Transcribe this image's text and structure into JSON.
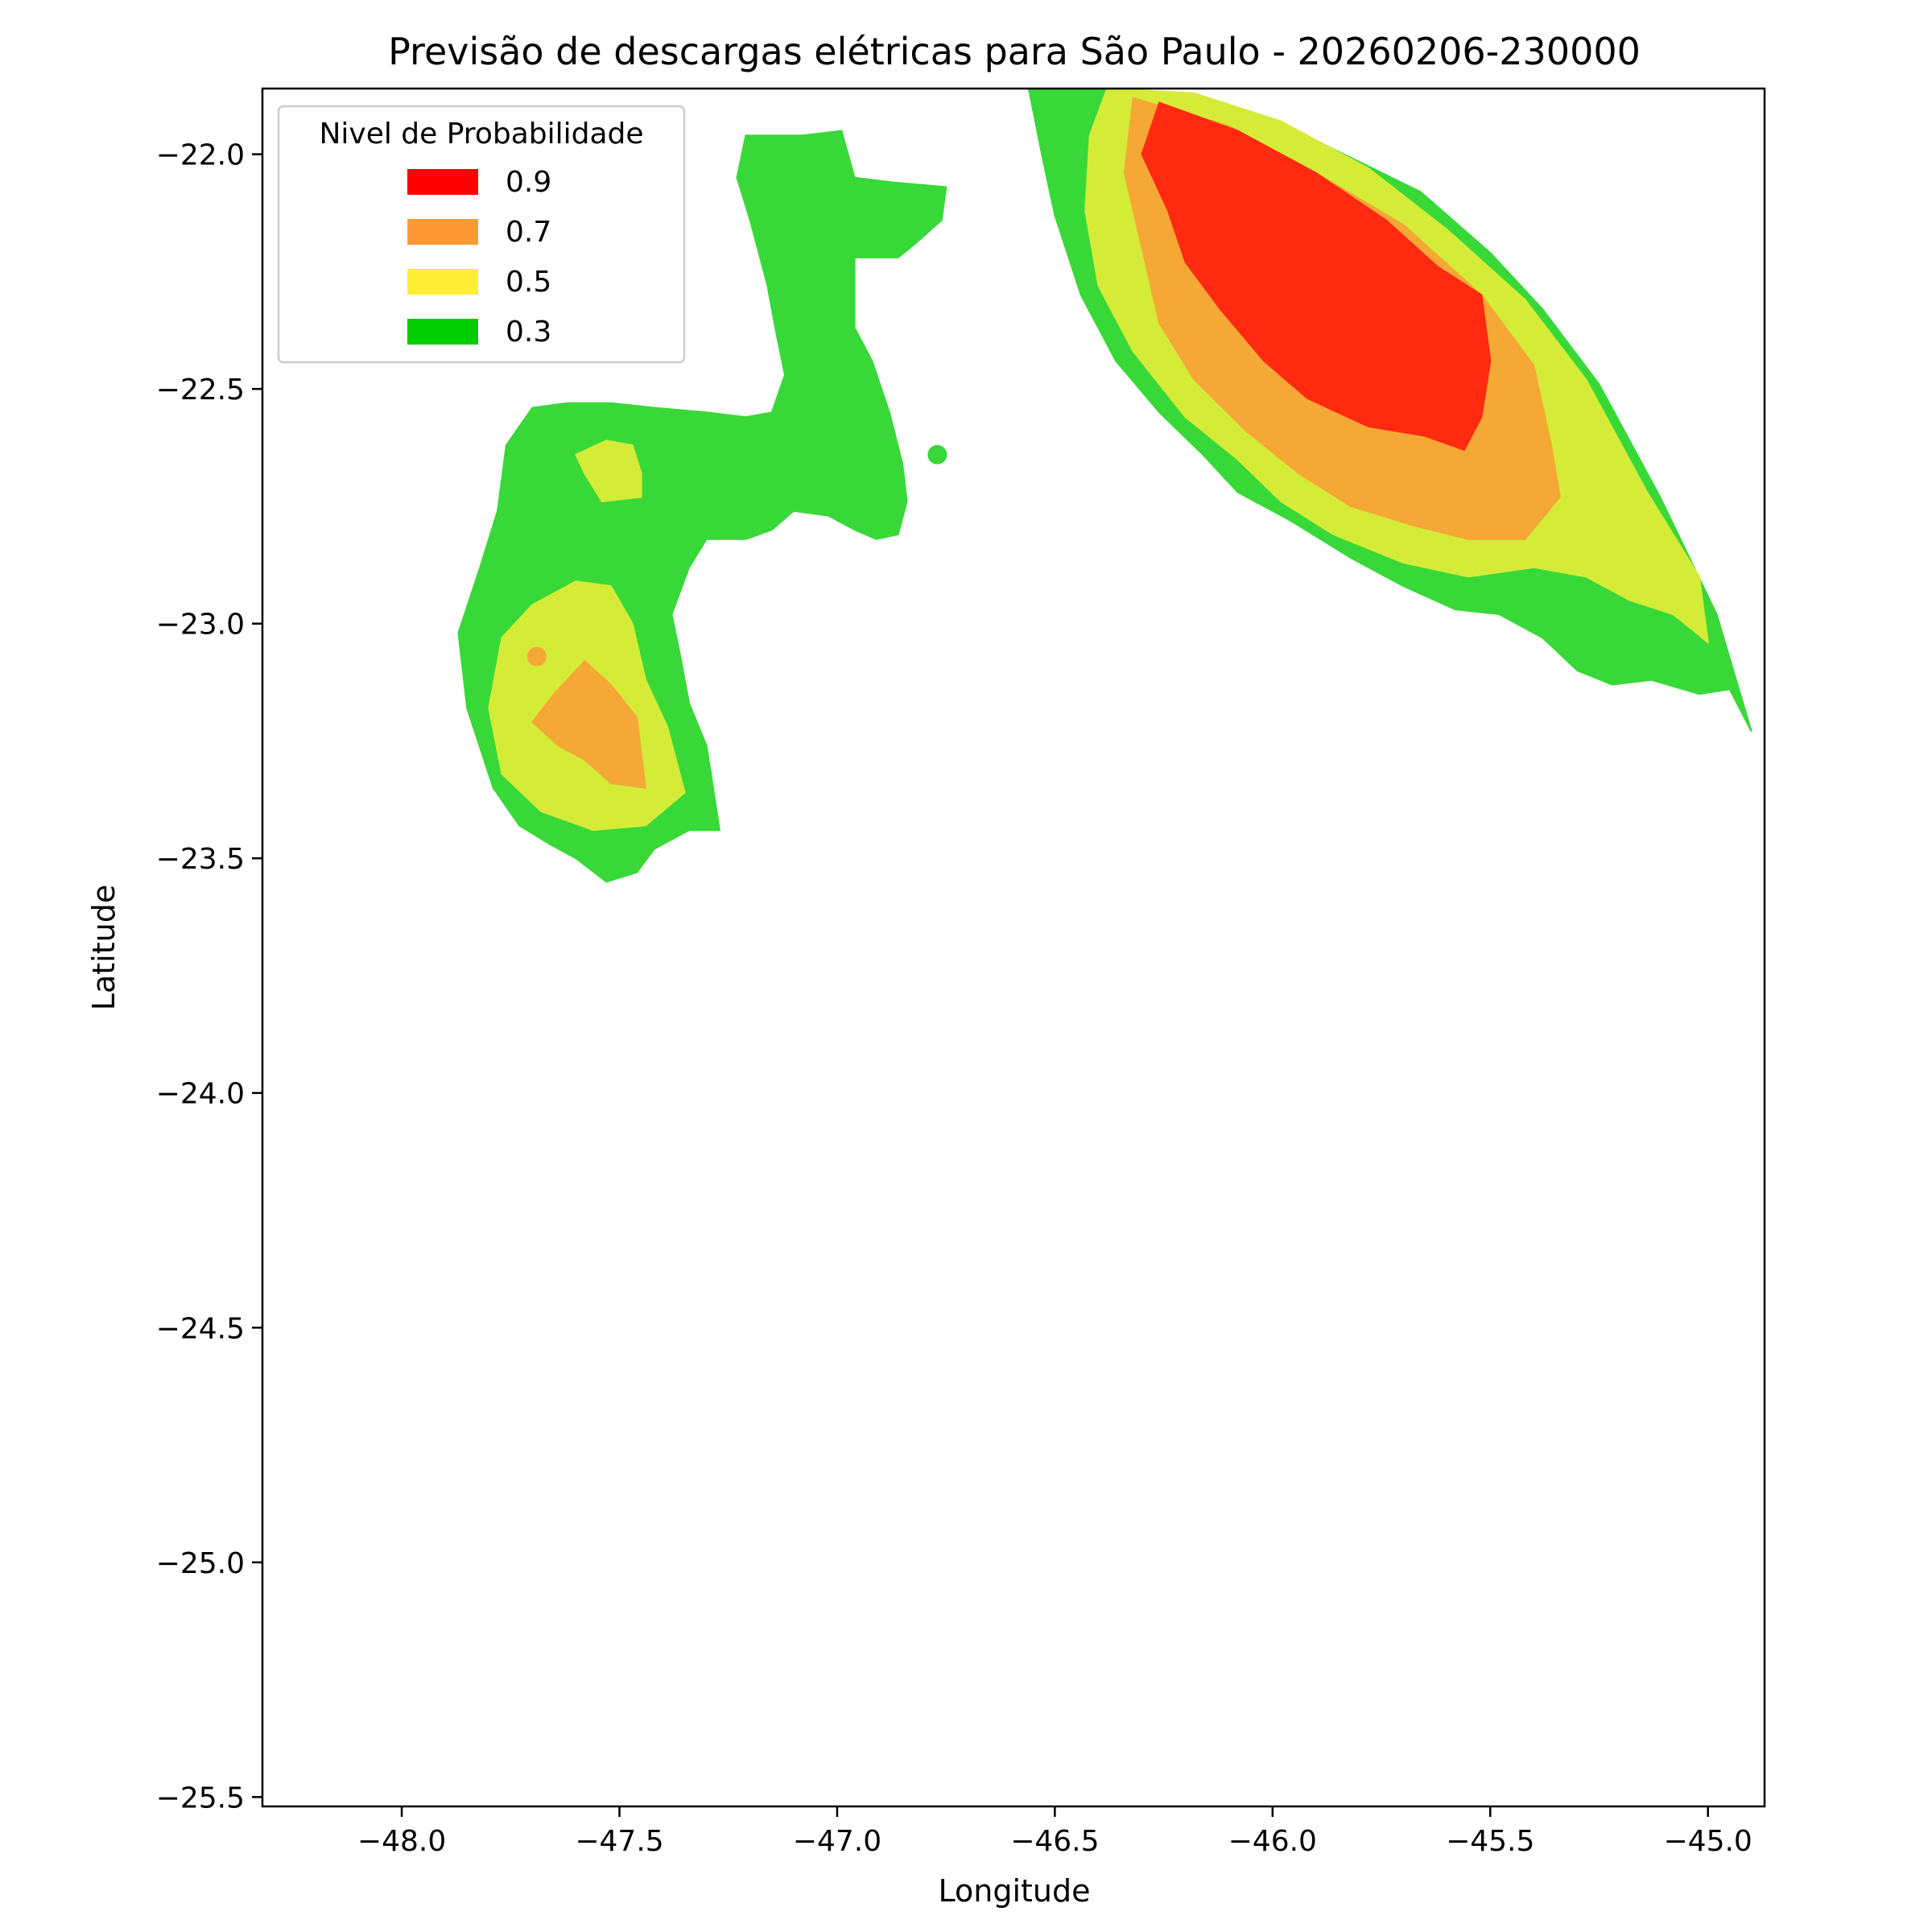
{
  "chart_data": {
    "type": "contour",
    "title": "Previsão de descargas elétricas para São Paulo - 20260206-230000",
    "xlabel": "Longitude",
    "ylabel": "Latitude",
    "xlim": [
      -48.32,
      -44.87
    ],
    "ylim": [
      -25.52,
      -21.86
    ],
    "xticks": [
      -48.0,
      -47.5,
      -47.0,
      -46.5,
      -46.0,
      -45.5,
      -45.0
    ],
    "xtick_labels": [
      "−48.0",
      "−47.5",
      "−47.0",
      "−46.5",
      "−46.0",
      "−45.5",
      "−45.0"
    ],
    "yticks": [
      -22.0,
      -22.5,
      -23.0,
      -23.5,
      -24.0,
      -24.5,
      -25.0,
      -25.5
    ],
    "ytick_labels": [
      "−22.0",
      "−22.5",
      "−23.0",
      "−23.5",
      "−24.0",
      "−24.5",
      "−25.0",
      "−25.5"
    ],
    "grid": false,
    "legend": {
      "title": "Nivel de Probabilidade",
      "placement": "top-left",
      "entries": [
        {
          "label": "0.9",
          "color": "#ff0000"
        },
        {
          "label": "0.7",
          "color": "#ff9933"
        },
        {
          "label": "0.5",
          "color": "#ffee33"
        },
        {
          "label": "0.3",
          "color": "#00cc00"
        }
      ]
    },
    "fill_colors": {
      "0.3": "#38d838",
      "0.5": "#d4ec38",
      "0.7": "#f5a836",
      "0.9": "#ff2a10"
    },
    "regions": [
      {
        "level": "0.3",
        "points": [
          [
            -47.21,
            -21.96
          ],
          [
            -47.08,
            -21.96
          ],
          [
            -46.99,
            -21.95
          ],
          [
            -46.96,
            -22.05
          ],
          [
            -46.87,
            -22.06
          ],
          [
            -46.75,
            -22.07
          ],
          [
            -46.76,
            -22.14
          ],
          [
            -46.82,
            -22.19
          ],
          [
            -46.86,
            -22.22
          ],
          [
            -46.96,
            -22.22
          ],
          [
            -46.96,
            -22.37
          ],
          [
            -46.92,
            -22.44
          ],
          [
            -46.88,
            -22.55
          ],
          [
            -46.85,
            -22.66
          ],
          [
            -46.84,
            -22.74
          ],
          [
            -46.86,
            -22.81
          ],
          [
            -46.91,
            -22.82
          ],
          [
            -46.96,
            -22.8
          ],
          [
            -47.02,
            -22.77
          ],
          [
            -47.1,
            -22.76
          ],
          [
            -47.15,
            -22.8
          ],
          [
            -47.21,
            -22.82
          ],
          [
            -47.3,
            -22.82
          ],
          [
            -47.34,
            -22.88
          ],
          [
            -47.38,
            -22.98
          ],
          [
            -47.36,
            -23.07
          ],
          [
            -47.34,
            -23.17
          ],
          [
            -47.3,
            -23.26
          ],
          [
            -47.27,
            -23.44
          ],
          [
            -47.34,
            -23.44
          ],
          [
            -47.42,
            -23.48
          ],
          [
            -47.46,
            -23.53
          ],
          [
            -47.53,
            -23.55
          ],
          [
            -47.6,
            -23.5
          ],
          [
            -47.66,
            -23.47
          ],
          [
            -47.73,
            -23.43
          ],
          [
            -47.79,
            -23.35
          ],
          [
            -47.85,
            -23.18
          ],
          [
            -47.87,
            -23.02
          ],
          [
            -47.82,
            -22.88
          ],
          [
            -47.78,
            -22.76
          ],
          [
            -47.76,
            -22.62
          ],
          [
            -47.7,
            -22.54
          ],
          [
            -47.62,
            -22.53
          ],
          [
            -47.52,
            -22.53
          ],
          [
            -47.42,
            -22.54
          ],
          [
            -47.3,
            -22.55
          ],
          [
            -47.21,
            -22.56
          ],
          [
            -47.15,
            -22.55
          ],
          [
            -47.12,
            -22.47
          ],
          [
            -47.14,
            -22.38
          ],
          [
            -47.16,
            -22.28
          ],
          [
            -47.2,
            -22.14
          ],
          [
            -47.23,
            -22.05
          ]
        ]
      },
      {
        "level": "0.3",
        "points": [
          [
            -46.56,
            -21.86
          ],
          [
            -46.34,
            -21.86
          ],
          [
            -46.1,
            -21.91
          ],
          [
            -45.88,
            -21.98
          ],
          [
            -45.66,
            -22.08
          ],
          [
            -45.5,
            -22.21
          ],
          [
            -45.38,
            -22.33
          ],
          [
            -45.25,
            -22.49
          ],
          [
            -45.11,
            -22.73
          ],
          [
            -44.98,
            -22.98
          ],
          [
            -44.9,
            -23.23
          ],
          [
            -44.95,
            -23.14
          ],
          [
            -45.02,
            -23.15
          ],
          [
            -45.13,
            -23.12
          ],
          [
            -45.22,
            -23.13
          ],
          [
            -45.3,
            -23.1
          ],
          [
            -45.38,
            -23.03
          ],
          [
            -45.48,
            -22.98
          ],
          [
            -45.58,
            -22.97
          ],
          [
            -45.7,
            -22.92
          ],
          [
            -45.82,
            -22.86
          ],
          [
            -45.96,
            -22.78
          ],
          [
            -46.08,
            -22.72
          ],
          [
            -46.16,
            -22.64
          ],
          [
            -46.26,
            -22.55
          ],
          [
            -46.36,
            -22.44
          ],
          [
            -46.44,
            -22.3
          ],
          [
            -46.5,
            -22.13
          ],
          [
            -46.53,
            -22.0
          ]
        ]
      },
      {
        "level": "0.5",
        "points": [
          [
            -47.53,
            -22.61
          ],
          [
            -47.47,
            -22.62
          ],
          [
            -47.45,
            -22.68
          ],
          [
            -47.45,
            -22.73
          ],
          [
            -47.54,
            -22.74
          ],
          [
            -47.58,
            -22.68
          ],
          [
            -47.6,
            -22.64
          ]
        ]
      },
      {
        "level": "0.5",
        "points": [
          [
            -47.6,
            -22.91
          ],
          [
            -47.52,
            -22.92
          ],
          [
            -47.47,
            -23.0
          ],
          [
            -47.44,
            -23.12
          ],
          [
            -47.39,
            -23.22
          ],
          [
            -47.35,
            -23.36
          ],
          [
            -47.44,
            -23.43
          ],
          [
            -47.56,
            -23.44
          ],
          [
            -47.68,
            -23.4
          ],
          [
            -47.77,
            -23.32
          ],
          [
            -47.8,
            -23.18
          ],
          [
            -47.77,
            -23.03
          ],
          [
            -47.7,
            -22.96
          ]
        ]
      },
      {
        "level": "0.5",
        "points": [
          [
            -46.38,
            -21.86
          ],
          [
            -46.18,
            -21.87
          ],
          [
            -45.98,
            -21.93
          ],
          [
            -45.78,
            -22.03
          ],
          [
            -45.6,
            -22.16
          ],
          [
            -45.42,
            -22.31
          ],
          [
            -45.28,
            -22.48
          ],
          [
            -45.14,
            -22.72
          ],
          [
            -45.02,
            -22.9
          ],
          [
            -45.0,
            -23.04
          ],
          [
            -45.08,
            -22.98
          ],
          [
            -45.18,
            -22.95
          ],
          [
            -45.28,
            -22.9
          ],
          [
            -45.4,
            -22.88
          ],
          [
            -45.55,
            -22.9
          ],
          [
            -45.7,
            -22.87
          ],
          [
            -45.86,
            -22.81
          ],
          [
            -45.98,
            -22.74
          ],
          [
            -46.08,
            -22.65
          ],
          [
            -46.2,
            -22.56
          ],
          [
            -46.32,
            -22.42
          ],
          [
            -46.4,
            -22.28
          ],
          [
            -46.43,
            -22.12
          ],
          [
            -46.42,
            -21.96
          ]
        ]
      },
      {
        "level": "0.7",
        "points": [
          [
            -47.58,
            -23.08
          ],
          [
            -47.65,
            -23.15
          ],
          [
            -47.7,
            -23.21
          ],
          [
            -47.64,
            -23.26
          ],
          [
            -47.58,
            -23.29
          ],
          [
            -47.52,
            -23.34
          ],
          [
            -47.44,
            -23.35
          ],
          [
            -47.46,
            -23.2
          ],
          [
            -47.52,
            -23.13
          ]
        ]
      },
      {
        "level": "0.7",
        "points": [
          [
            -46.32,
            -21.88
          ],
          [
            -46.1,
            -21.94
          ],
          [
            -45.9,
            -22.04
          ],
          [
            -45.7,
            -22.15
          ],
          [
            -45.52,
            -22.3
          ],
          [
            -45.4,
            -22.45
          ],
          [
            -45.36,
            -22.62
          ],
          [
            -45.34,
            -22.73
          ],
          [
            -45.42,
            -22.82
          ],
          [
            -45.55,
            -22.82
          ],
          [
            -45.68,
            -22.79
          ],
          [
            -45.82,
            -22.75
          ],
          [
            -45.94,
            -22.68
          ],
          [
            -46.06,
            -22.59
          ],
          [
            -46.18,
            -22.48
          ],
          [
            -46.26,
            -22.36
          ],
          [
            -46.3,
            -22.2
          ],
          [
            -46.34,
            -22.04
          ]
        ]
      },
      {
        "level": "0.9",
        "points": [
          [
            -46.26,
            -21.89
          ],
          [
            -46.08,
            -21.95
          ],
          [
            -45.9,
            -22.04
          ],
          [
            -45.74,
            -22.14
          ],
          [
            -45.62,
            -22.24
          ],
          [
            -45.52,
            -22.3
          ],
          [
            -45.5,
            -22.44
          ],
          [
            -45.52,
            -22.56
          ],
          [
            -45.56,
            -22.63
          ],
          [
            -45.65,
            -22.6
          ],
          [
            -45.78,
            -22.58
          ],
          [
            -45.92,
            -22.52
          ],
          [
            -46.02,
            -22.44
          ],
          [
            -46.12,
            -22.33
          ],
          [
            -46.2,
            -22.23
          ],
          [
            -46.24,
            -22.12
          ],
          [
            -46.3,
            -22.0
          ]
        ]
      }
    ],
    "points": [
      {
        "level": "0.3",
        "lon": -47.75,
        "lat": -22.94
      },
      {
        "level": "0.7",
        "lon": -47.69,
        "lat": -23.07
      },
      {
        "level": "0.3",
        "lon": -46.77,
        "lat": -22.64
      }
    ]
  }
}
